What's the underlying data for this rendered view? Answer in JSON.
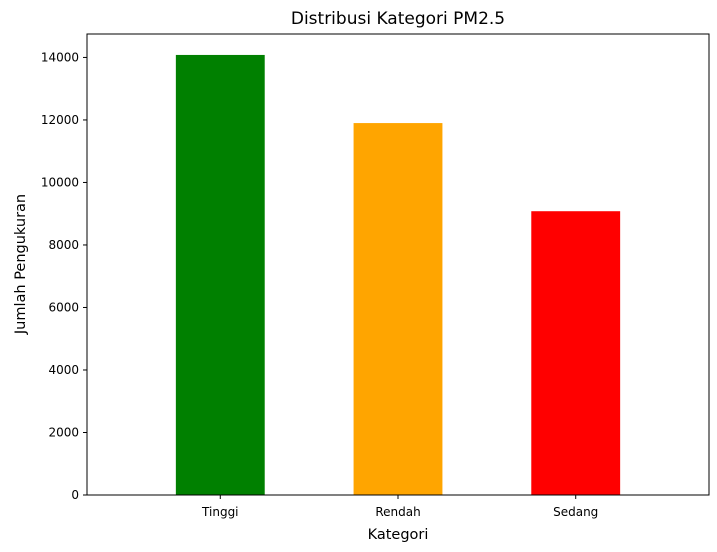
{
  "chart_data": {
    "type": "bar",
    "title": "Distribusi Kategori PM2.5",
    "xlabel": "Kategori",
    "ylabel": "Jumlah Pengukuran",
    "categories": [
      "Tinggi",
      "Rendah",
      "Sedang"
    ],
    "values": [
      14080,
      11900,
      9080
    ],
    "colors": [
      "#008000",
      "#FFA500",
      "#FF0000"
    ],
    "ylim": [
      0,
      14750
    ],
    "yticks": [
      0,
      2000,
      4000,
      6000,
      8000,
      10000,
      12000,
      14000
    ],
    "grid": false,
    "legend": "none"
  }
}
